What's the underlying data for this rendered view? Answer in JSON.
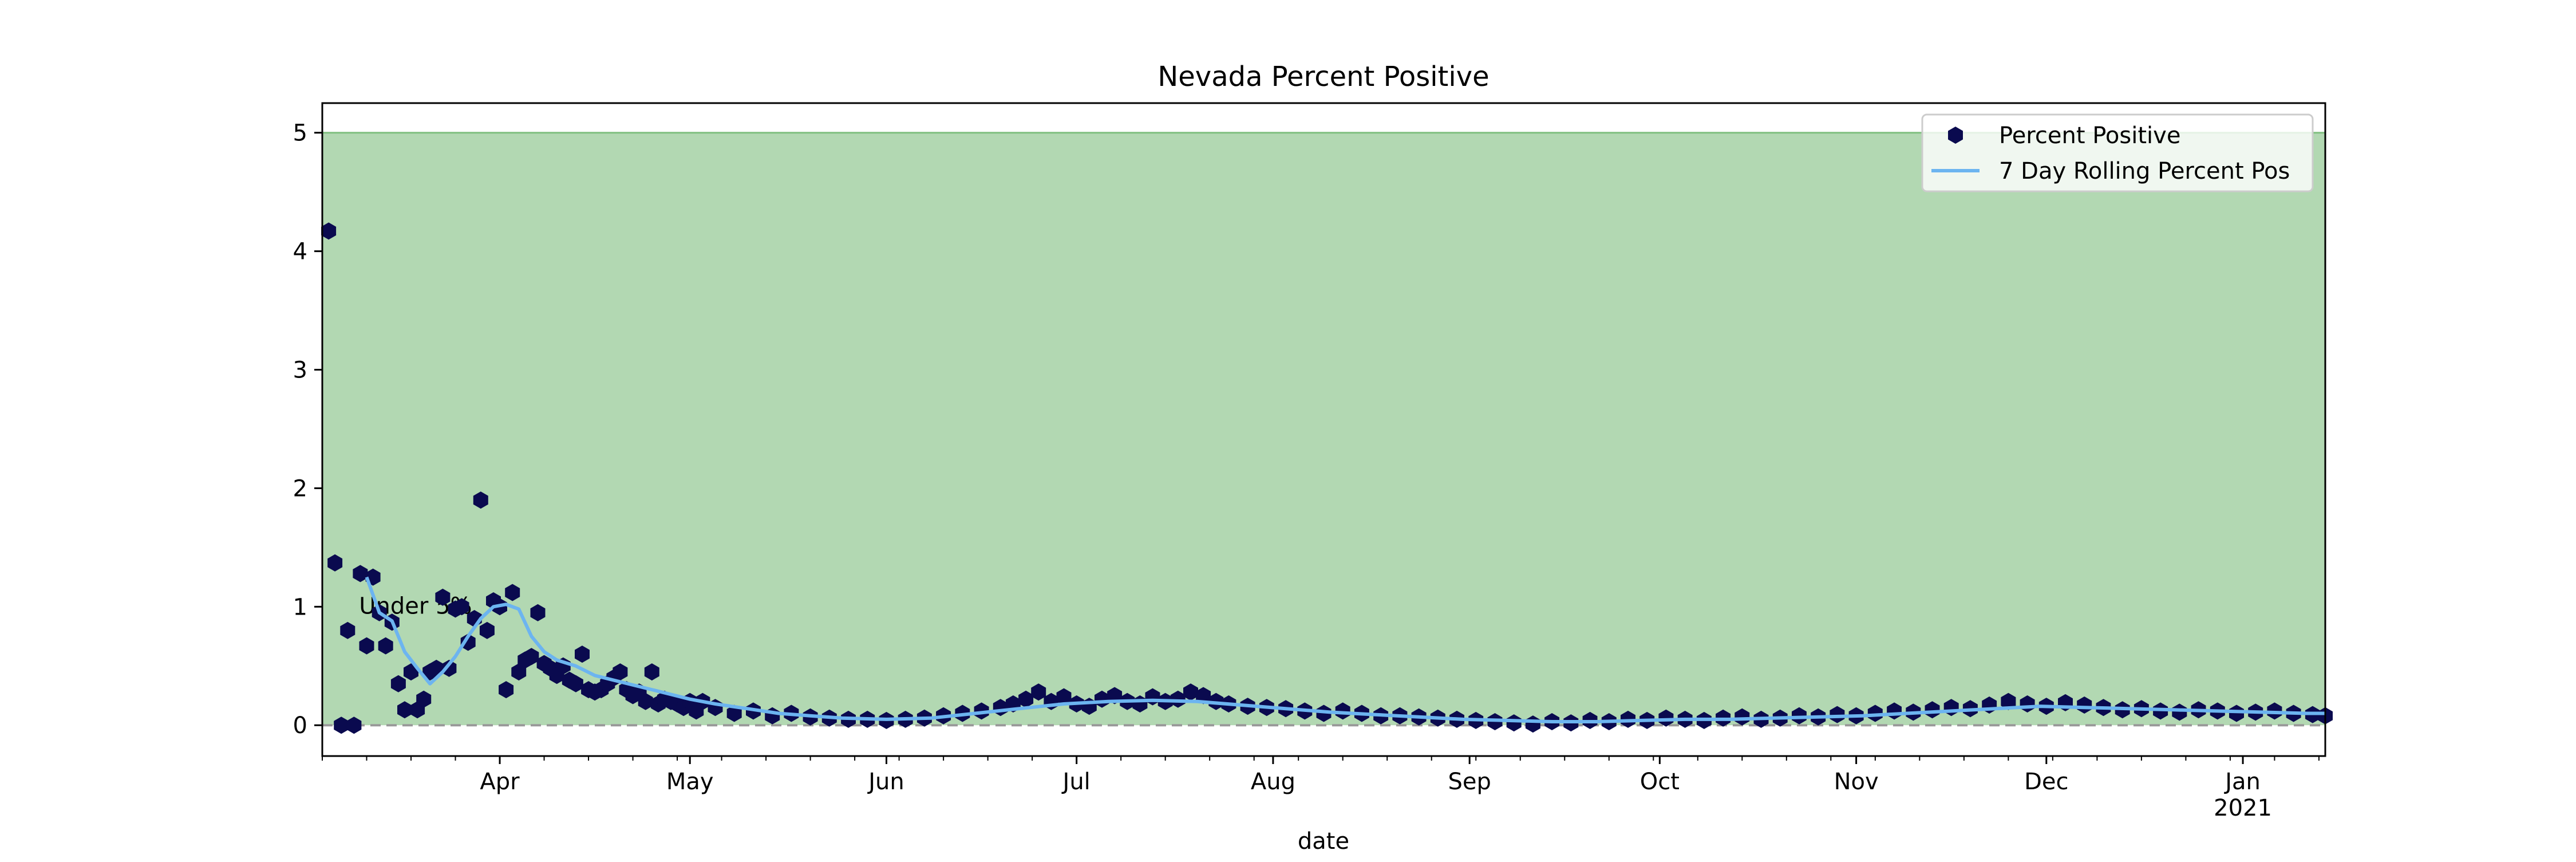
{
  "chart_data": {
    "type": "scatter",
    "title": "Nevada Percent Positive",
    "xlabel": "date",
    "ylabel": "",
    "xlim": [
      "2020-03-04",
      "2021-01-14"
    ],
    "ylim": [
      -0.26,
      5.25
    ],
    "y_ticks": [
      0,
      1,
      2,
      3,
      4,
      5
    ],
    "x_ticks": [
      {
        "date": "2020-04-01",
        "label": "Apr",
        "sublabel": ""
      },
      {
        "date": "2020-05-01",
        "label": "May",
        "sublabel": ""
      },
      {
        "date": "2020-06-01",
        "label": "Jun",
        "sublabel": ""
      },
      {
        "date": "2020-07-01",
        "label": "Jul",
        "sublabel": ""
      },
      {
        "date": "2020-08-01",
        "label": "Aug",
        "sublabel": ""
      },
      {
        "date": "2020-09-01",
        "label": "Sep",
        "sublabel": ""
      },
      {
        "date": "2020-10-01",
        "label": "Oct",
        "sublabel": ""
      },
      {
        "date": "2020-11-01",
        "label": "Nov",
        "sublabel": ""
      },
      {
        "date": "2020-12-01",
        "label": "Dec",
        "sublabel": ""
      },
      {
        "date": "2021-01-01",
        "label": "Jan",
        "sublabel": "2021"
      }
    ],
    "threshold_band": {
      "from": 0,
      "to": 5,
      "color": "#b2d8b2",
      "label": "Under 5%",
      "label_x": "2020-03-08",
      "label_y": 1.0
    },
    "zero_line": {
      "y": 0,
      "color": "#999999",
      "style": "dashed"
    },
    "legend": {
      "placement": "top-right",
      "entries": [
        {
          "name": "Percent Positive",
          "kind": "marker",
          "color": "#0a0a4f"
        },
        {
          "name": "7 Day Rolling Percent Pos",
          "kind": "line",
          "color": "#6cb4f0"
        }
      ]
    },
    "series": [
      {
        "name": "Percent Positive",
        "color": "#0a0a4f",
        "marker": "hexagon",
        "x": [
          "2020-03-05",
          "2020-03-06",
          "2020-03-07",
          "2020-03-08",
          "2020-03-09",
          "2020-03-10",
          "2020-03-11",
          "2020-03-12",
          "2020-03-13",
          "2020-03-14",
          "2020-03-15",
          "2020-03-16",
          "2020-03-17",
          "2020-03-18",
          "2020-03-19",
          "2020-03-20",
          "2020-03-21",
          "2020-03-22",
          "2020-03-23",
          "2020-03-24",
          "2020-03-25",
          "2020-03-26",
          "2020-03-27",
          "2020-03-28",
          "2020-03-29",
          "2020-03-30",
          "2020-03-31",
          "2020-04-01",
          "2020-04-02",
          "2020-04-03",
          "2020-04-04",
          "2020-04-05",
          "2020-04-06",
          "2020-04-07",
          "2020-04-08",
          "2020-04-09",
          "2020-04-10",
          "2020-04-11",
          "2020-04-12",
          "2020-04-13",
          "2020-04-14",
          "2020-04-15",
          "2020-04-16",
          "2020-04-17",
          "2020-04-18",
          "2020-04-19",
          "2020-04-20",
          "2020-04-21",
          "2020-04-22",
          "2020-04-23",
          "2020-04-24",
          "2020-04-25",
          "2020-04-26",
          "2020-04-27",
          "2020-04-28",
          "2020-04-29",
          "2020-04-30",
          "2020-05-01",
          "2020-05-02",
          "2020-05-03",
          "2020-05-05",
          "2020-05-08",
          "2020-05-11",
          "2020-05-14",
          "2020-05-17",
          "2020-05-20",
          "2020-05-23",
          "2020-05-26",
          "2020-05-29",
          "2020-06-01",
          "2020-06-04",
          "2020-06-07",
          "2020-06-10",
          "2020-06-13",
          "2020-06-16",
          "2020-06-19",
          "2020-06-21",
          "2020-06-23",
          "2020-06-25",
          "2020-06-27",
          "2020-06-29",
          "2020-07-01",
          "2020-07-03",
          "2020-07-05",
          "2020-07-07",
          "2020-07-09",
          "2020-07-11",
          "2020-07-13",
          "2020-07-15",
          "2020-07-17",
          "2020-07-19",
          "2020-07-21",
          "2020-07-23",
          "2020-07-25",
          "2020-07-28",
          "2020-07-31",
          "2020-08-03",
          "2020-08-06",
          "2020-08-09",
          "2020-08-12",
          "2020-08-15",
          "2020-08-18",
          "2020-08-21",
          "2020-08-24",
          "2020-08-27",
          "2020-08-30",
          "2020-09-02",
          "2020-09-05",
          "2020-09-08",
          "2020-09-11",
          "2020-09-14",
          "2020-09-17",
          "2020-09-20",
          "2020-09-23",
          "2020-09-26",
          "2020-09-29",
          "2020-10-02",
          "2020-10-05",
          "2020-10-08",
          "2020-10-11",
          "2020-10-14",
          "2020-10-17",
          "2020-10-20",
          "2020-10-23",
          "2020-10-26",
          "2020-10-29",
          "2020-11-01",
          "2020-11-04",
          "2020-11-07",
          "2020-11-10",
          "2020-11-13",
          "2020-11-16",
          "2020-11-19",
          "2020-11-22",
          "2020-11-25",
          "2020-11-28",
          "2020-12-01",
          "2020-12-04",
          "2020-12-07",
          "2020-12-10",
          "2020-12-13",
          "2020-12-16",
          "2020-12-19",
          "2020-12-22",
          "2020-12-25",
          "2020-12-28",
          "2020-12-31",
          "2021-01-03",
          "2021-01-06",
          "2021-01-09",
          "2021-01-12",
          "2021-01-14"
        ],
        "y": [
          4.17,
          1.37,
          0.0,
          0.8,
          0.0,
          1.28,
          0.67,
          1.25,
          0.95,
          0.67,
          0.87,
          0.35,
          0.13,
          0.45,
          0.13,
          0.22,
          0.45,
          0.48,
          1.08,
          0.48,
          0.98,
          1.0,
          0.7,
          0.9,
          1.9,
          0.8,
          1.05,
          1.0,
          0.3,
          1.12,
          0.45,
          0.55,
          0.58,
          0.95,
          0.52,
          0.48,
          0.42,
          0.5,
          0.38,
          0.35,
          0.6,
          0.3,
          0.28,
          0.3,
          0.35,
          0.4,
          0.45,
          0.3,
          0.25,
          0.28,
          0.2,
          0.45,
          0.18,
          0.22,
          0.2,
          0.18,
          0.15,
          0.2,
          0.12,
          0.2,
          0.15,
          0.1,
          0.12,
          0.08,
          0.1,
          0.07,
          0.06,
          0.05,
          0.05,
          0.04,
          0.05,
          0.06,
          0.08,
          0.1,
          0.12,
          0.15,
          0.18,
          0.22,
          0.28,
          0.2,
          0.24,
          0.18,
          0.16,
          0.22,
          0.25,
          0.2,
          0.18,
          0.24,
          0.2,
          0.22,
          0.28,
          0.25,
          0.2,
          0.18,
          0.16,
          0.15,
          0.14,
          0.12,
          0.1,
          0.12,
          0.1,
          0.08,
          0.08,
          0.07,
          0.06,
          0.05,
          0.04,
          0.03,
          0.02,
          0.01,
          0.03,
          0.02,
          0.04,
          0.03,
          0.05,
          0.04,
          0.06,
          0.05,
          0.04,
          0.06,
          0.07,
          0.05,
          0.06,
          0.08,
          0.07,
          0.09,
          0.08,
          0.1,
          0.12,
          0.11,
          0.13,
          0.15,
          0.14,
          0.17,
          0.2,
          0.18,
          0.16,
          0.19,
          0.17,
          0.15,
          0.13,
          0.14,
          0.12,
          0.11,
          0.13,
          0.12,
          0.1,
          0.11,
          0.12,
          0.1,
          0.09,
          0.08
        ]
      },
      {
        "name": "7 Day Rolling Percent Pos",
        "color": "#6cb4f0",
        "marker": "line",
        "x": [
          "2020-03-11",
          "2020-03-13",
          "2020-03-15",
          "2020-03-17",
          "2020-03-19",
          "2020-03-21",
          "2020-03-23",
          "2020-03-25",
          "2020-03-27",
          "2020-03-29",
          "2020-03-31",
          "2020-04-02",
          "2020-04-04",
          "2020-04-06",
          "2020-04-08",
          "2020-04-10",
          "2020-04-13",
          "2020-04-16",
          "2020-04-19",
          "2020-04-22",
          "2020-04-25",
          "2020-04-28",
          "2020-05-01",
          "2020-05-05",
          "2020-05-10",
          "2020-05-15",
          "2020-05-20",
          "2020-05-25",
          "2020-06-01",
          "2020-06-08",
          "2020-06-15",
          "2020-06-22",
          "2020-06-29",
          "2020-07-06",
          "2020-07-13",
          "2020-07-20",
          "2020-07-27",
          "2020-08-03",
          "2020-08-10",
          "2020-08-17",
          "2020-08-24",
          "2020-08-31",
          "2020-09-07",
          "2020-09-14",
          "2020-09-21",
          "2020-09-28",
          "2020-10-05",
          "2020-10-12",
          "2020-10-19",
          "2020-10-26",
          "2020-11-02",
          "2020-11-09",
          "2020-11-16",
          "2020-11-23",
          "2020-11-30",
          "2020-12-07",
          "2020-12-14",
          "2020-12-21",
          "2020-12-28",
          "2021-01-04",
          "2021-01-11",
          "2021-01-14"
        ],
        "y": [
          1.25,
          0.95,
          0.88,
          0.62,
          0.48,
          0.35,
          0.45,
          0.58,
          0.75,
          0.9,
          1.0,
          1.02,
          0.98,
          0.75,
          0.62,
          0.55,
          0.5,
          0.42,
          0.38,
          0.34,
          0.3,
          0.26,
          0.22,
          0.18,
          0.14,
          0.1,
          0.08,
          0.06,
          0.05,
          0.06,
          0.1,
          0.14,
          0.18,
          0.2,
          0.21,
          0.2,
          0.17,
          0.14,
          0.11,
          0.09,
          0.07,
          0.05,
          0.04,
          0.03,
          0.03,
          0.04,
          0.05,
          0.05,
          0.06,
          0.07,
          0.08,
          0.1,
          0.12,
          0.14,
          0.16,
          0.15,
          0.14,
          0.13,
          0.12,
          0.11,
          0.1,
          0.1
        ]
      }
    ]
  }
}
